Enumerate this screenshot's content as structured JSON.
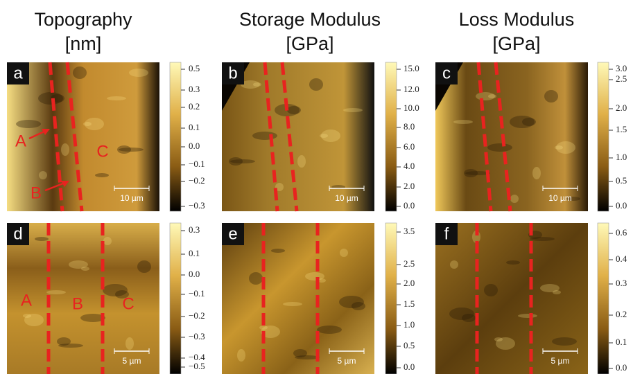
{
  "headers": [
    {
      "title": "Topography",
      "unit": "[nm]"
    },
    {
      "title": "Storage Modulus",
      "unit": "[GPa]"
    },
    {
      "title": "Loss Modulus",
      "unit": "[GPa]"
    }
  ],
  "panels": [
    {
      "label": "a",
      "scale_bar": "10 µm",
      "colorbar_ticks": [
        "0.5",
        "0.3",
        "0.2",
        "0.1",
        "0.0",
        "−0.1",
        "−0.2",
        "−0.3"
      ],
      "annotations": [
        "A",
        "B",
        "C"
      ]
    },
    {
      "label": "b",
      "scale_bar": "10 µm",
      "colorbar_ticks": [
        "15.0",
        "12.0",
        "10.0",
        "8.0",
        "6.0",
        "4.0",
        "2.0",
        "0.0"
      ]
    },
    {
      "label": "c",
      "scale_bar": "10 µm",
      "colorbar_ticks": [
        "3.0",
        "2.5",
        "2.0",
        "1.5",
        "1.0",
        "0.5",
        "0.0"
      ]
    },
    {
      "label": "d",
      "scale_bar": "5 µm",
      "colorbar_ticks": [
        "0.3",
        "0.1",
        "0.0",
        "−0.1",
        "−0.2",
        "−0.3",
        "−0.4",
        "−0.5"
      ],
      "annotations": [
        "A",
        "B",
        "C"
      ]
    },
    {
      "label": "e",
      "scale_bar": "5 µm",
      "colorbar_ticks": [
        "3.5",
        "2.5",
        "2.0",
        "1.5",
        "1.0",
        "0.5",
        "0.0"
      ]
    },
    {
      "label": "f",
      "scale_bar": "5 µm",
      "colorbar_ticks": [
        "0.6",
        "0.4",
        "0.3",
        "0.2",
        "0.1",
        "0.0"
      ]
    }
  ]
}
